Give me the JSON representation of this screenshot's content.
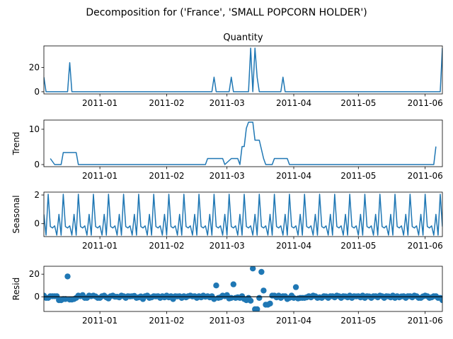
{
  "figure": {
    "suptitle": "Decomposition for ('France', 'SMALL POPCORN HOLDER')",
    "line_color": "#1f77b4"
  },
  "chart_data": [
    {
      "type": "line",
      "title": "Quantity",
      "ylabel": "",
      "xlim": [
        "2010-12-06",
        "2011-06-09"
      ],
      "ylim": [
        -1.8,
        37.8
      ],
      "yticks": [
        0,
        20
      ],
      "xticks": [
        "2011-01-01",
        "2011-02-01",
        "2011-03-01",
        "2011-04-01",
        "2011-05-01",
        "2011-06-01"
      ],
      "xtick_labels": [
        "2011-01",
        "2011-02",
        "2011-03",
        "2011-04",
        "2011-05",
        "2011-06"
      ],
      "x": [
        "2010-12-06",
        "2010-12-07",
        "2010-12-17",
        "2010-12-18",
        "2010-12-19",
        "2011-02-22",
        "2011-02-23",
        "2011-02-24",
        "2011-03-02",
        "2011-03-03",
        "2011-03-04",
        "2011-03-11",
        "2011-03-12",
        "2011-03-13",
        "2011-03-14",
        "2011-03-15",
        "2011-03-16",
        "2011-03-26",
        "2011-03-27",
        "2011-03-28",
        "2011-06-08",
        "2011-06-09"
      ],
      "values": [
        12,
        0,
        0,
        24,
        0,
        0,
        12,
        0,
        0,
        12,
        0,
        0,
        36,
        0,
        36,
        12,
        0,
        0,
        12,
        0,
        0,
        36
      ]
    },
    {
      "type": "line",
      "title": "",
      "ylabel": "Trend",
      "xlim": [
        "2010-12-06",
        "2011-06-09"
      ],
      "ylim": [
        -0.6,
        12.6
      ],
      "yticks": [
        0,
        10
      ],
      "xticks": [
        "2011-01-01",
        "2011-02-01",
        "2011-03-01",
        "2011-04-01",
        "2011-05-01",
        "2011-06-01"
      ],
      "xtick_labels": [
        "2011-01",
        "2011-02",
        "2011-03",
        "2011-04",
        "2011-05",
        "2011-06"
      ],
      "x": [
        "2010-12-09",
        "2010-12-11",
        "2010-12-14",
        "2010-12-15",
        "2010-12-21",
        "2010-12-22",
        "2011-02-19",
        "2011-02-20",
        "2011-02-26",
        "2011-02-27",
        "2011-02-28",
        "2011-03-03",
        "2011-03-04",
        "2011-03-05",
        "2011-03-06",
        "2011-03-07",
        "2011-03-08",
        "2011-03-09",
        "2011-03-10",
        "2011-03-11",
        "2011-03-12",
        "2011-03-13",
        "2011-03-14",
        "2011-03-15",
        "2011-03-16",
        "2011-03-18",
        "2011-03-19",
        "2011-03-22",
        "2011-03-23",
        "2011-03-29",
        "2011-03-30",
        "2011-06-05",
        "2011-06-06"
      ],
      "values": [
        1.7,
        0,
        0,
        3.4,
        3.4,
        0,
        0,
        1.7,
        1.7,
        1.7,
        0,
        1.7,
        1.7,
        1.7,
        1.7,
        0,
        5.1,
        5.1,
        10.3,
        12,
        12,
        12,
        6.9,
        6.9,
        6.9,
        1.7,
        0,
        0,
        1.7,
        1.7,
        0,
        0,
        5.1
      ]
    },
    {
      "type": "line",
      "title": "",
      "ylabel": "Seasonal",
      "xlim": [
        "2010-12-06",
        "2011-06-09"
      ],
      "ylim": [
        -0.9,
        2.2
      ],
      "yticks": [
        0,
        2
      ],
      "xticks": [
        "2011-01-01",
        "2011-02-01",
        "2011-03-01",
        "2011-04-01",
        "2011-05-01",
        "2011-06-01"
      ],
      "xtick_labels": [
        "2011-01",
        "2011-02",
        "2011-03",
        "2011-04",
        "2011-05",
        "2011-06"
      ],
      "period": 7,
      "x_start": "2010-12-06",
      "cycle_values": [
        0.65,
        -0.8,
        2.05,
        -0.2,
        -0.3,
        -0.15,
        -0.8
      ]
    },
    {
      "type": "scatter",
      "title": "",
      "ylabel": "Resid",
      "xlim": [
        "2010-12-06",
        "2011-06-09"
      ],
      "ylim": [
        -13,
        27
      ],
      "yticks": [
        0,
        20
      ],
      "baseline": 0,
      "xticks": [
        "2011-01-01",
        "2011-02-01",
        "2011-03-01",
        "2011-04-01",
        "2011-05-01",
        "2011-06-01"
      ],
      "xtick_labels": [
        "2011-01",
        "2011-02",
        "2011-03",
        "2011-04",
        "2011-05",
        "2011-06"
      ],
      "x_start": "2010-12-06",
      "values": [
        1,
        -1,
        -1,
        0.5,
        0.5,
        0.5,
        0.5,
        -3,
        -3,
        -2,
        -2,
        18,
        -2.5,
        -2.5,
        -2,
        -1,
        1,
        0.5,
        1.5,
        -1,
        -1,
        1,
        0.5,
        1,
        0.3,
        -1,
        -1,
        0.5,
        1,
        -0.5,
        -1.5,
        0.5,
        1,
        0,
        0,
        -0.5,
        1,
        0.5,
        -1,
        0.5,
        0.3,
        0.5,
        0.8,
        -1,
        -0.5,
        0.3,
        -2,
        0.5,
        1,
        -1,
        -0.5,
        0.5,
        0.3,
        0.5,
        -1,
        0.5,
        -0.5,
        1,
        -0.5,
        0.5,
        -2,
        0.5,
        0.3,
        0.5,
        -1,
        0.5,
        -0.5,
        0.5,
        1,
        0.3,
        0.5,
        -1,
        0.5,
        -0.5,
        1,
        0,
        0.5,
        -0.5,
        0.5,
        -2,
        10,
        -1,
        -0.5,
        1,
        0.5,
        1.5,
        -1.5,
        -1,
        11,
        -1,
        -0.5,
        -1,
        0.5,
        -2,
        -3,
        -1,
        -3.5,
        25,
        -11,
        -11,
        -1,
        22,
        5.5,
        -7,
        -7,
        -6,
        1,
        1,
        -0.5,
        1,
        -1,
        0.5,
        0.5,
        -2,
        -1,
        1,
        -1,
        8.5,
        -1.5,
        -1,
        -1,
        -1,
        -0.5,
        0.5,
        -0.5,
        1,
        0.5,
        -1,
        -0.5,
        -1,
        0.5,
        0.3,
        -1,
        0.5,
        0.5,
        -0.5,
        1,
        0.5,
        -1,
        0.5,
        0.3,
        -0.5,
        1,
        -1,
        0.5,
        0.3,
        0.5,
        -0.5,
        1,
        -1,
        0.5,
        0.3,
        -1,
        0.5,
        0.5,
        -0.5,
        1,
        0.5,
        -1,
        0.5,
        0.3,
        -0.5,
        1,
        -1,
        0.5,
        -0.5,
        0.3,
        0.5,
        -1,
        0.5,
        0.5,
        -0.5,
        1,
        0.5,
        -1,
        -1,
        0.3,
        1,
        0.5,
        -1,
        -0.5,
        0.5,
        0.5,
        -1,
        -1,
        -3
      ]
    }
  ]
}
